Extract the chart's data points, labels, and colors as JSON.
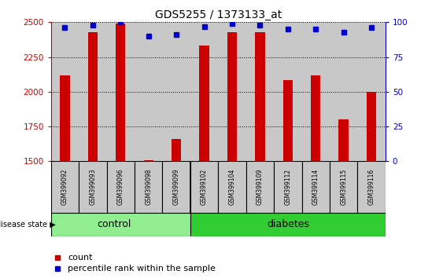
{
  "title": "GDS5255 / 1373133_at",
  "samples": [
    "GSM399092",
    "GSM399093",
    "GSM399096",
    "GSM399098",
    "GSM399099",
    "GSM399102",
    "GSM399104",
    "GSM399109",
    "GSM399112",
    "GSM399114",
    "GSM399115",
    "GSM399116"
  ],
  "counts": [
    2120,
    2430,
    2490,
    1510,
    1660,
    2330,
    2430,
    2430,
    2085,
    2115,
    1800,
    2000
  ],
  "percentiles": [
    96,
    98,
    100,
    90,
    91,
    97,
    99,
    98,
    95,
    95,
    93,
    96
  ],
  "n_control": 5,
  "bar_color": "#cc0000",
  "dot_color": "#0000cc",
  "ylim_left": [
    1500,
    2500
  ],
  "ylim_right": [
    0,
    100
  ],
  "yticks_left": [
    1500,
    1750,
    2000,
    2250,
    2500
  ],
  "yticks_right": [
    0,
    25,
    50,
    75,
    100
  ],
  "control_color": "#90ee90",
  "diabetes_color": "#32cd32",
  "col_bg_color": "#c8c8c8",
  "legend_count_label": "count",
  "legend_pct_label": "percentile rank within the sample",
  "disease_state_label": "disease state",
  "bar_width": 0.35
}
